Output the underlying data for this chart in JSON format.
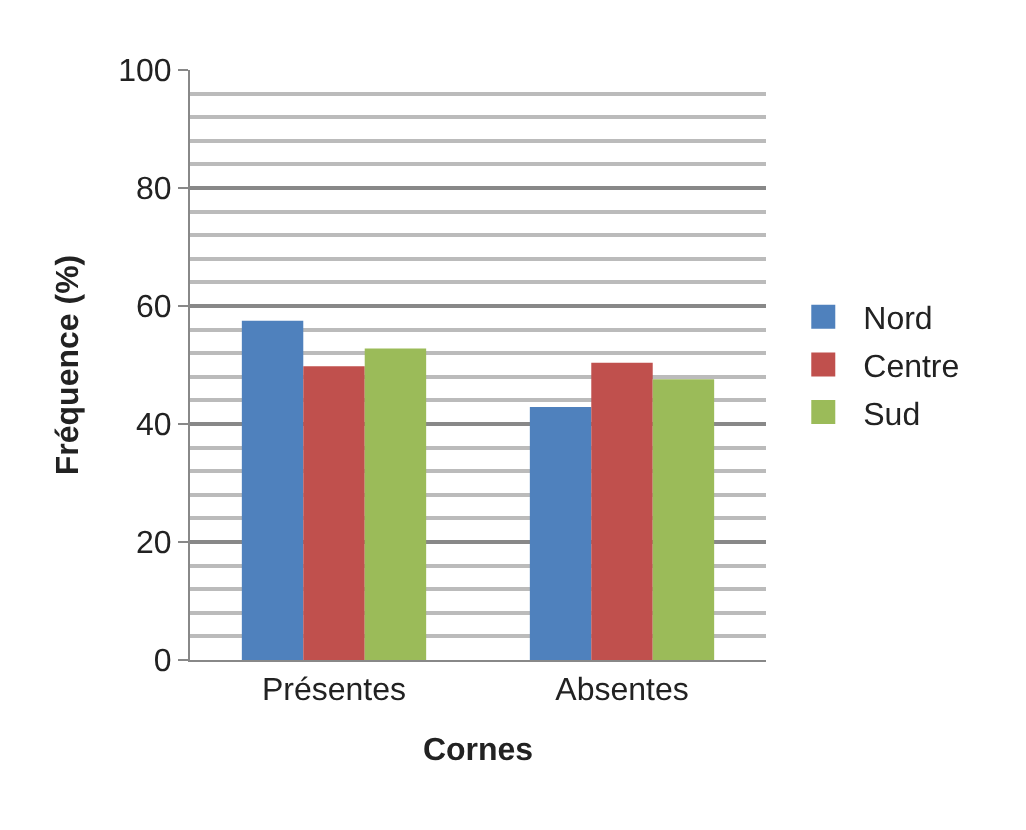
{
  "chart_data": {
    "type": "bar",
    "xlabel": "Cornes",
    "ylabel": "Fréquence (%)",
    "categories": [
      "Présentes",
      "Absentes"
    ],
    "series": [
      {
        "name": "Nord",
        "color": "#4f81bd",
        "values": [
          57.5,
          42.9
        ]
      },
      {
        "name": "Centre",
        "color": "#c0504d",
        "values": [
          49.8,
          50.4
        ]
      },
      {
        "name": "Sud",
        "color": "#9bbb59",
        "values": [
          52.8,
          47.6
        ]
      }
    ],
    "ylim": [
      0,
      100
    ],
    "yticks": [
      0,
      20,
      40,
      60,
      80,
      100
    ],
    "grid": "y",
    "legend": "right"
  }
}
